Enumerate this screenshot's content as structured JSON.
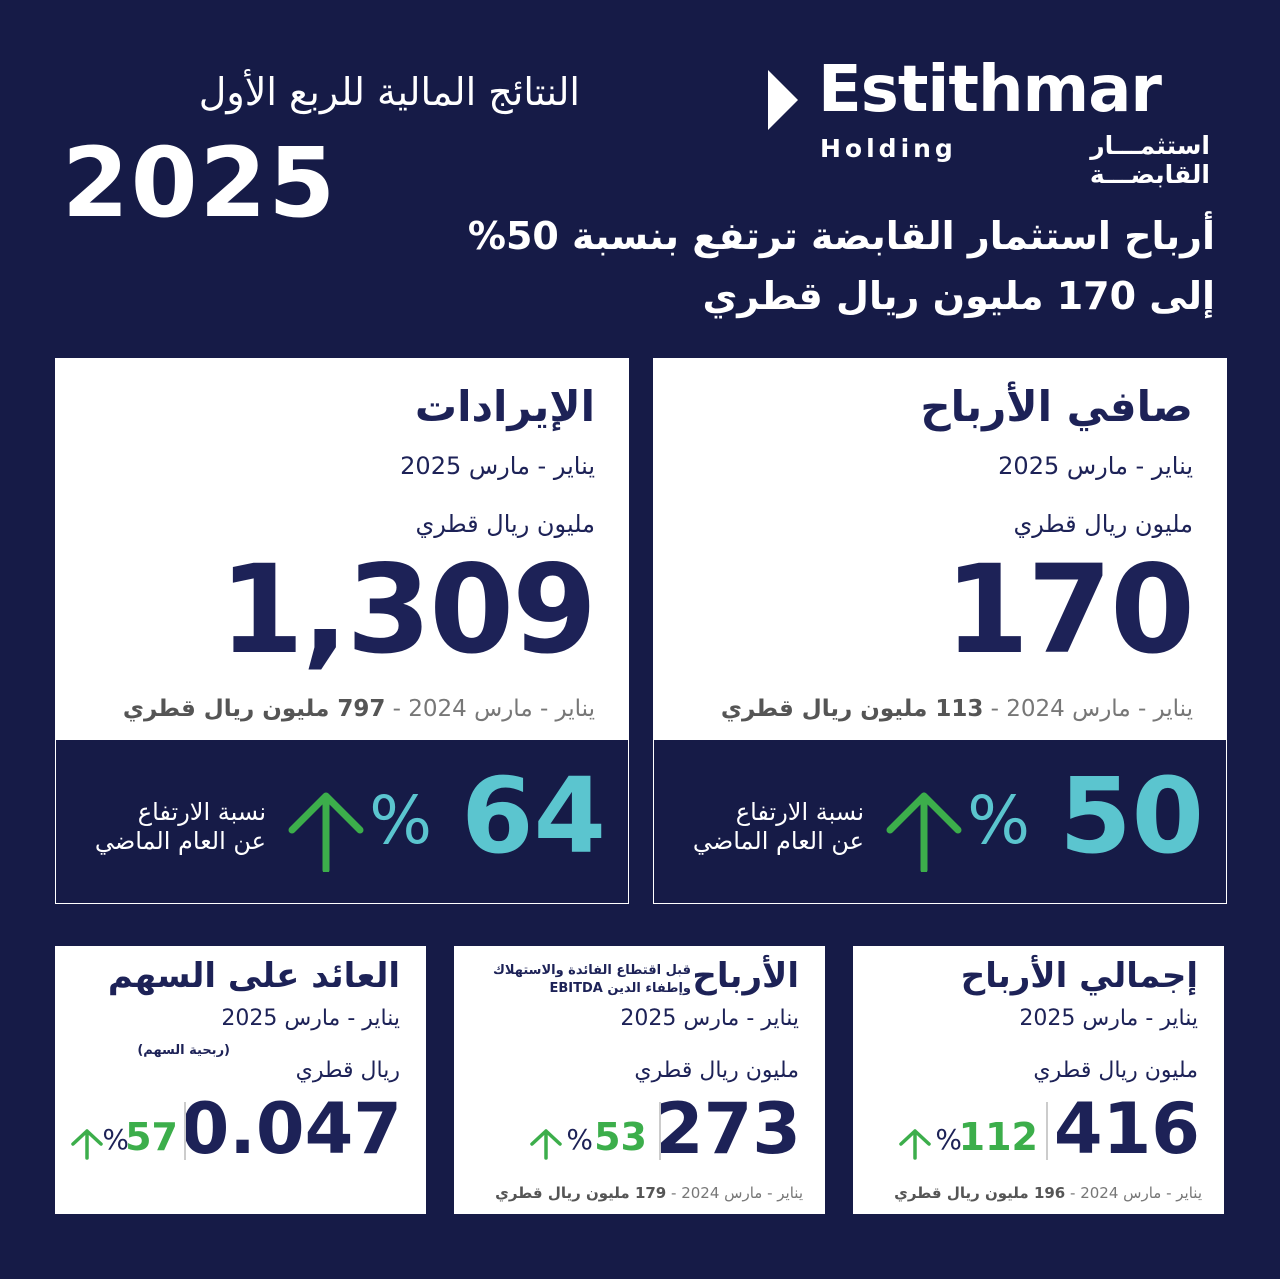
{
  "header": {
    "quarter_label": "النتائج المالية للربع الأول",
    "year": "2025",
    "logo_name": "Estithmar",
    "logo_sub_en": "Holding",
    "logo_sub_ar": "استثمـــار القابضـــة",
    "headline_line1": "أرباح استثمار القابضة ترتفع بنسبة 50%",
    "headline_line2": "إلى 170 مليون ريال قطري"
  },
  "big_cards": {
    "profit": {
      "title": "صافي الأرباح",
      "period": "يناير - مارس 2025",
      "unit": "مليون ريال قطري",
      "value": "170",
      "prev_period": "يناير - مارس 2024 - ",
      "prev_value": "113 مليون ريال قطري",
      "pct": "50",
      "pct_sign": "%",
      "pct_label_1": "نسبة الارتفاع",
      "pct_label_2": "عن العام الماضي"
    },
    "revenue": {
      "title": "الإيرادات",
      "period": "يناير - مارس 2025",
      "unit": "مليون ريال قطري",
      "value": "1,309",
      "prev_period": "يناير - مارس 2024 - ",
      "prev_value": "797 مليون ريال قطري",
      "pct": "64",
      "pct_sign": "%",
      "pct_label_1": "نسبة الارتفاع",
      "pct_label_2": "عن العام الماضي"
    }
  },
  "small_cards": {
    "gross": {
      "title": "إجمالي الأرباح",
      "period": "يناير - مارس 2025",
      "unit": "مليون ريال قطري",
      "value": "416",
      "pct": "112",
      "pct_sign": "%",
      "prev_period": "يناير - مارس 2024 - ",
      "prev_value": "196 مليون ريال قطري"
    },
    "ebitda": {
      "title": "الأرباح",
      "note_1": "قبل اقتطاع الفائدة والاستهلاك",
      "note_2": "وإطفاء الدين EBITDA",
      "period": "يناير - مارس 2025",
      "unit": "مليون ريال قطري",
      "value": "273",
      "pct": "53",
      "pct_sign": "%",
      "prev_period": "يناير - مارس 2024 - ",
      "prev_value": "179 مليون ريال قطري"
    },
    "eps": {
      "title": "العائد على السهم",
      "period": "يناير - مارس 2025",
      "note": "(ربحية السهم)",
      "unit": "ريال قطري",
      "value": "0.047",
      "pct": "57",
      "pct_sign": "%"
    }
  },
  "colors": {
    "background": "#161b47",
    "navy_text": "#1d2257",
    "teal": "#5bc5cf",
    "green": "#3cae4b"
  }
}
